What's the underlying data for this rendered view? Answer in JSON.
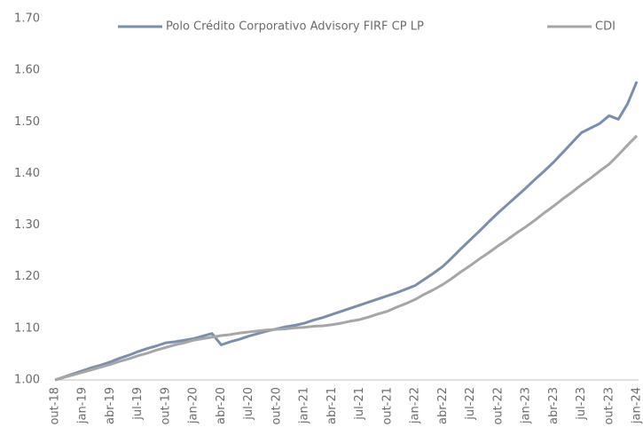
{
  "chart_data": {
    "type": "line",
    "categories": [
      "out-18",
      null,
      null,
      "jan-19",
      null,
      null,
      "abr-19",
      null,
      null,
      "jul-19",
      null,
      null,
      "out-19",
      null,
      null,
      "jan-20",
      null,
      null,
      "abr-20",
      null,
      null,
      "jul-20",
      null,
      null,
      "out-20",
      null,
      null,
      "jan-21",
      null,
      null,
      "abr-21",
      null,
      null,
      "jul-21",
      null,
      null,
      "out-21",
      null,
      null,
      "jan-22",
      null,
      null,
      "abr-22",
      null,
      null,
      "jul-22",
      null,
      null,
      "out-22",
      null,
      null,
      "jan-23",
      null,
      null,
      "abr-23",
      null,
      null,
      "jul-23",
      null,
      null,
      "out-23",
      null,
      null,
      "jan-24"
    ],
    "series": [
      {
        "name": "Polo Crédito Corporativo Advisory FIRF CP LP",
        "color": "#7b8eab",
        "values": [
          1.0,
          1.006,
          1.012,
          1.018,
          1.024,
          1.029,
          1.035,
          1.042,
          1.048,
          1.055,
          1.061,
          1.066,
          1.072,
          1.074,
          1.077,
          1.08,
          1.085,
          1.09,
          1.068,
          1.074,
          1.079,
          1.085,
          1.09,
          1.095,
          1.099,
          1.103,
          1.106,
          1.11,
          1.116,
          1.121,
          1.127,
          1.133,
          1.139,
          1.145,
          1.151,
          1.157,
          1.163,
          1.169,
          1.176,
          1.183,
          1.195,
          1.207,
          1.22,
          1.237,
          1.255,
          1.272,
          1.289,
          1.307,
          1.324,
          1.34,
          1.356,
          1.372,
          1.389,
          1.405,
          1.422,
          1.441,
          1.46,
          1.479,
          1.488,
          1.497,
          1.512,
          1.505,
          1.535,
          1.578
        ]
      },
      {
        "name": "CDI",
        "color": "#a6a6a6",
        "values": [
          1.0,
          1.005,
          1.01,
          1.015,
          1.02,
          1.025,
          1.03,
          1.036,
          1.041,
          1.047,
          1.052,
          1.058,
          1.063,
          1.068,
          1.072,
          1.077,
          1.08,
          1.083,
          1.086,
          1.088,
          1.091,
          1.093,
          1.095,
          1.097,
          1.098,
          1.099,
          1.101,
          1.102,
          1.104,
          1.105,
          1.107,
          1.11,
          1.114,
          1.117,
          1.122,
          1.128,
          1.133,
          1.141,
          1.148,
          1.156,
          1.166,
          1.175,
          1.185,
          1.197,
          1.21,
          1.222,
          1.235,
          1.247,
          1.26,
          1.272,
          1.285,
          1.297,
          1.31,
          1.324,
          1.337,
          1.351,
          1.364,
          1.378,
          1.391,
          1.405,
          1.418,
          1.436,
          1.455,
          1.473
        ]
      }
    ],
    "ylim": [
      1.0,
      1.7
    ],
    "yticks": [
      {
        "value": 1.0,
        "label": "1.00"
      },
      {
        "value": 1.1,
        "label": "1.10"
      },
      {
        "value": 1.2,
        "label": "1.20"
      },
      {
        "value": 1.3,
        "label": "1.30"
      },
      {
        "value": 1.4,
        "label": "1.40"
      },
      {
        "value": 1.5,
        "label": "1.50"
      },
      {
        "value": 1.6,
        "label": "1.60"
      },
      {
        "value": 1.7,
        "label": "1.70"
      }
    ],
    "grid": false,
    "legend": "top"
  }
}
